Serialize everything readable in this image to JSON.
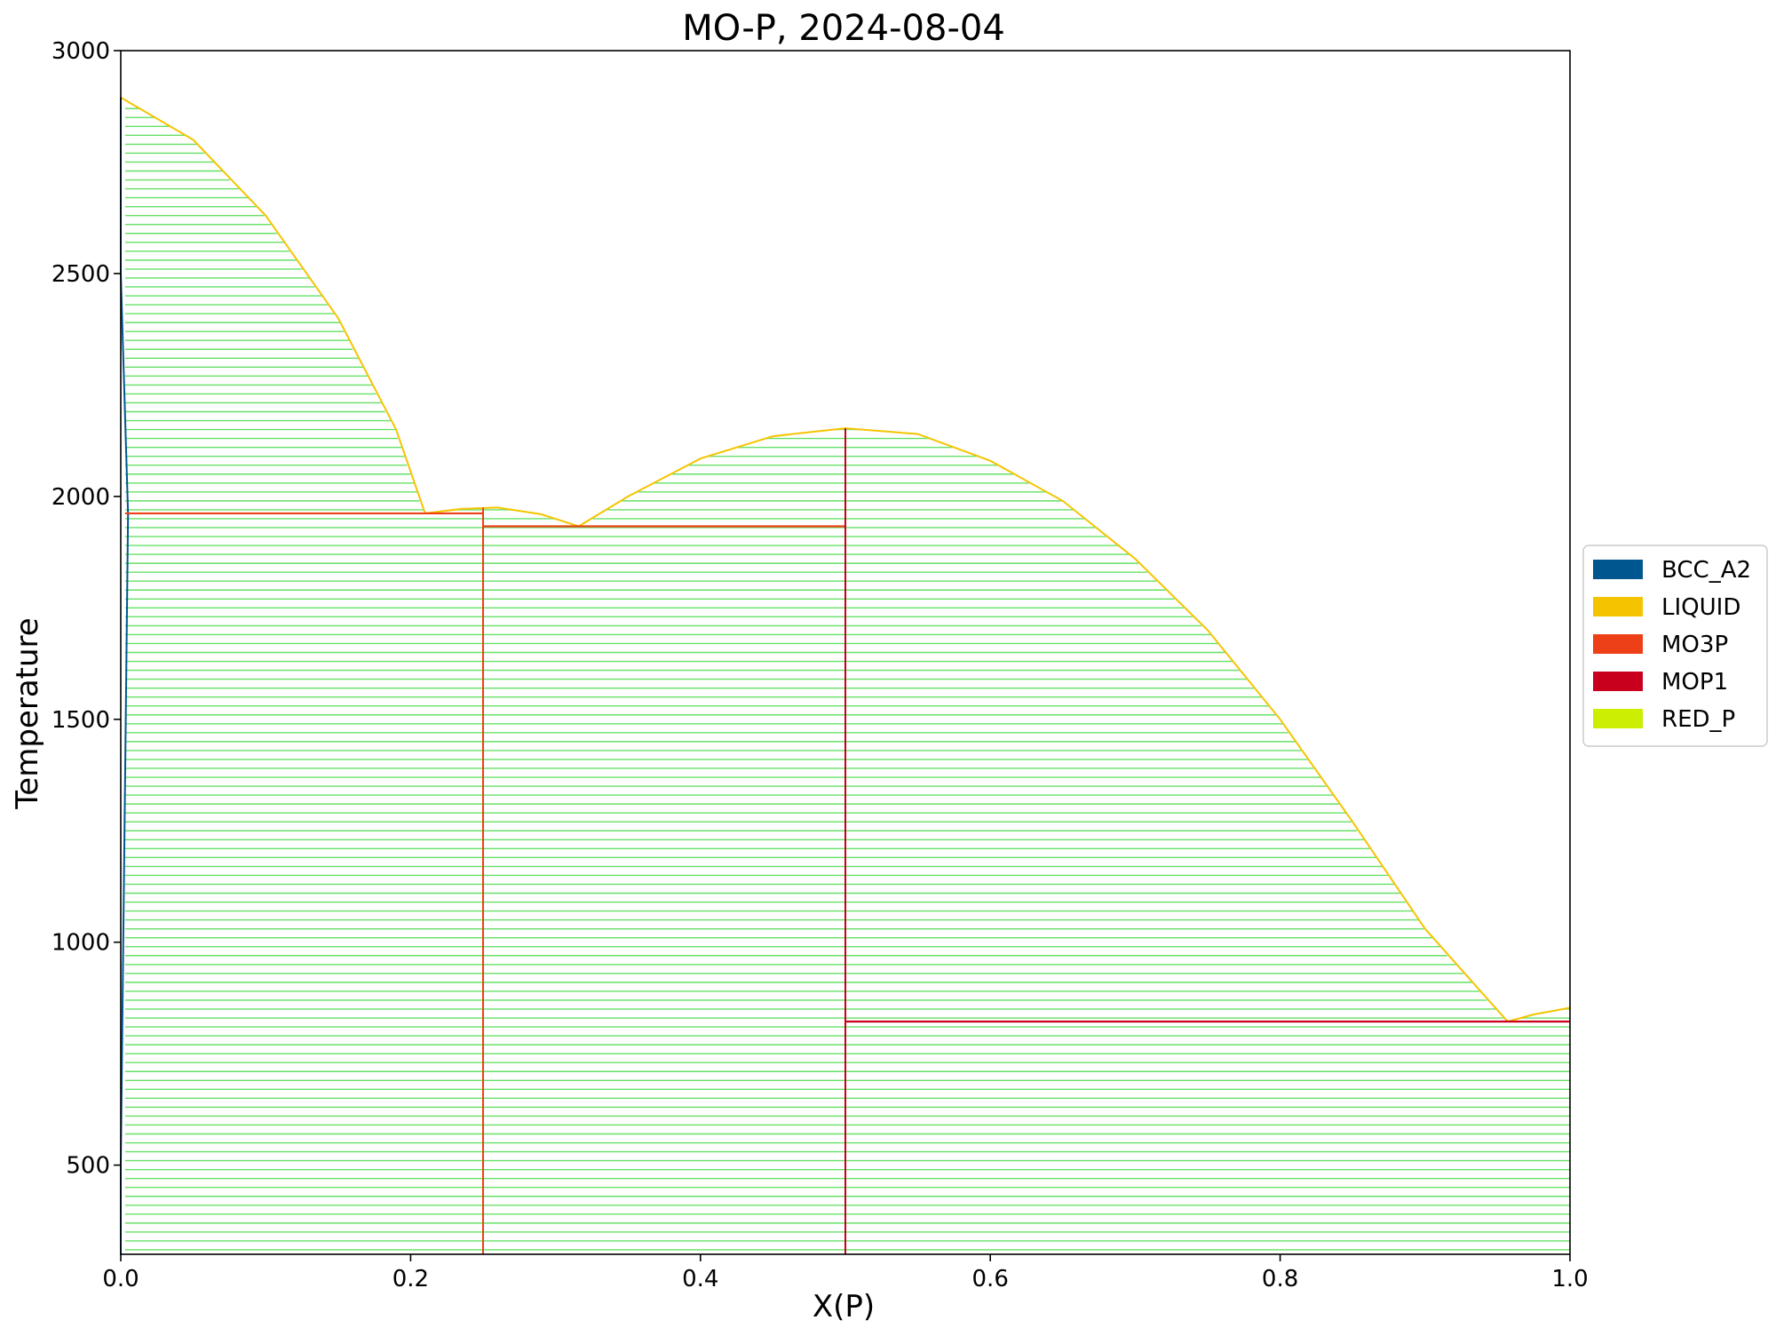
{
  "chart_data": {
    "type": "phase_diagram",
    "title": "MO-P, 2024-08-04",
    "xlabel": "X(P)",
    "ylabel": "Temperature",
    "xlim": [
      0.0,
      1.0
    ],
    "ylim": [
      300,
      3000
    ],
    "xticks": [
      "0.0",
      "0.2",
      "0.4",
      "0.6",
      "0.8",
      "1.0"
    ],
    "yticks": [
      "500",
      "1000",
      "1500",
      "2000",
      "2500",
      "3000"
    ],
    "tie_line_spacing": 20,
    "legend_position": "right",
    "legend": [
      {
        "name": "BCC_A2",
        "color": "#00568F"
      },
      {
        "name": "LIQUID",
        "color": "#F5C400"
      },
      {
        "name": "MO3P",
        "color": "#EE4016"
      },
      {
        "name": "MOP1",
        "color": "#C8001E"
      },
      {
        "name": "RED_P",
        "color": "#CCEE00"
      }
    ],
    "tie_line_color": "#66E066",
    "liquidus_segments": [
      {
        "phase": "LIQUID",
        "points": [
          [
            0.0,
            2895
          ],
          [
            0.05,
            2800
          ],
          [
            0.1,
            2630
          ],
          [
            0.15,
            2400
          ],
          [
            0.19,
            2150
          ],
          [
            0.21,
            1962
          ]
        ]
      },
      {
        "phase": "LIQUID",
        "points": [
          [
            0.21,
            1962
          ],
          [
            0.235,
            1972
          ],
          [
            0.26,
            1975
          ],
          [
            0.29,
            1960
          ],
          [
            0.316,
            1933
          ]
        ]
      },
      {
        "phase": "LIQUID",
        "points": [
          [
            0.316,
            1933
          ],
          [
            0.35,
            2000
          ],
          [
            0.4,
            2085
          ],
          [
            0.45,
            2135
          ],
          [
            0.5,
            2153
          ]
        ]
      },
      {
        "phase": "LIQUID",
        "points": [
          [
            0.5,
            2153
          ],
          [
            0.55,
            2140
          ],
          [
            0.6,
            2080
          ],
          [
            0.65,
            1990
          ],
          [
            0.7,
            1860
          ],
          [
            0.75,
            1700
          ],
          [
            0.8,
            1500
          ],
          [
            0.85,
            1270
          ],
          [
            0.9,
            1030
          ],
          [
            0.957,
            822
          ]
        ]
      },
      {
        "phase": "LIQUID",
        "points": [
          [
            0.957,
            822
          ],
          [
            0.975,
            838
          ],
          [
            1.0,
            853
          ]
        ]
      }
    ],
    "solvus_segments": [
      {
        "phase": "BCC_A2",
        "points": [
          [
            0.0,
            300
          ],
          [
            0.0,
            500
          ],
          [
            0.005,
            1960
          ],
          [
            0.0,
            2500
          ],
          [
            0.0,
            2895
          ]
        ]
      }
    ],
    "invariant_lines": [
      {
        "phase": "MO3P",
        "x": [
          0.003,
          0.25
        ],
        "y": 1962
      },
      {
        "phase": "MO3P",
        "x": [
          0.25,
          0.5
        ],
        "y": 1933
      },
      {
        "phase": "MOP1",
        "x": [
          0.5,
          1.0
        ],
        "y": 822
      }
    ],
    "compound_lines": [
      {
        "phase": "MO3P",
        "x": 0.25,
        "y": [
          300,
          1975
        ]
      },
      {
        "phase": "MOP1",
        "x": 0.5,
        "y": [
          300,
          2153
        ]
      }
    ]
  }
}
